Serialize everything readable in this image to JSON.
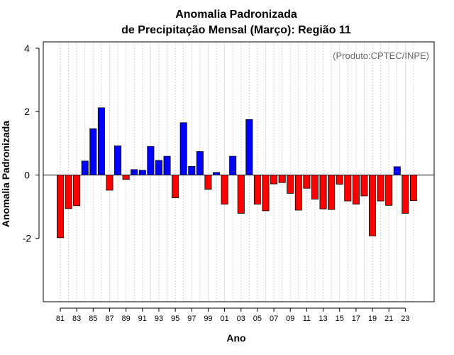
{
  "chart_data": {
    "type": "bar",
    "title_line1": "Anomalia Padronizada",
    "title_line2": "de Precipitação Mensal (Março): Região 11",
    "credit": "(Produto:CPTEC/INPE)",
    "xlabel": "Ano",
    "ylabel": "Anomalia Padronizada",
    "ylim": [
      -4,
      4.2
    ],
    "yticks": [
      -2,
      0,
      2,
      4
    ],
    "ytick_labels": [
      "-2",
      "0",
      "2",
      "4"
    ],
    "years": [
      "81",
      "82",
      "83",
      "84",
      "85",
      "86",
      "87",
      "88",
      "89",
      "90",
      "91",
      "92",
      "93",
      "94",
      "95",
      "96",
      "97",
      "98",
      "99",
      "00",
      "01",
      "02",
      "03",
      "04",
      "05",
      "06",
      "07",
      "08",
      "09",
      "10",
      "11",
      "12",
      "13",
      "14",
      "15",
      "16",
      "17",
      "18",
      "19",
      "20",
      "21",
      "22",
      "23",
      "24"
    ],
    "xtick_labels": [
      "81",
      "83",
      "85",
      "87",
      "89",
      "91",
      "93",
      "95",
      "97",
      "99",
      "01",
      "03",
      "05",
      "07",
      "09",
      "11",
      "13",
      "15",
      "17",
      "19",
      "21",
      "23"
    ],
    "values": [
      -1.98,
      -1.06,
      -0.97,
      0.44,
      1.46,
      2.12,
      -0.48,
      0.92,
      -0.14,
      0.17,
      0.15,
      0.9,
      0.46,
      0.59,
      -0.72,
      1.65,
      0.27,
      0.74,
      -0.45,
      0.08,
      -0.92,
      0.59,
      -1.21,
      1.75,
      -0.92,
      -1.13,
      -0.28,
      -0.24,
      -0.58,
      -1.11,
      -0.42,
      -0.76,
      -1.07,
      -1.09,
      -0.29,
      -0.82,
      -0.92,
      -0.66,
      -1.92,
      -0.82,
      -0.96,
      0.26,
      -1.21,
      -0.81
    ],
    "colors": {
      "positive": "#0000ff",
      "negative": "#ff0000",
      "outline": "#000000",
      "grid": "#c8c8c8"
    }
  }
}
